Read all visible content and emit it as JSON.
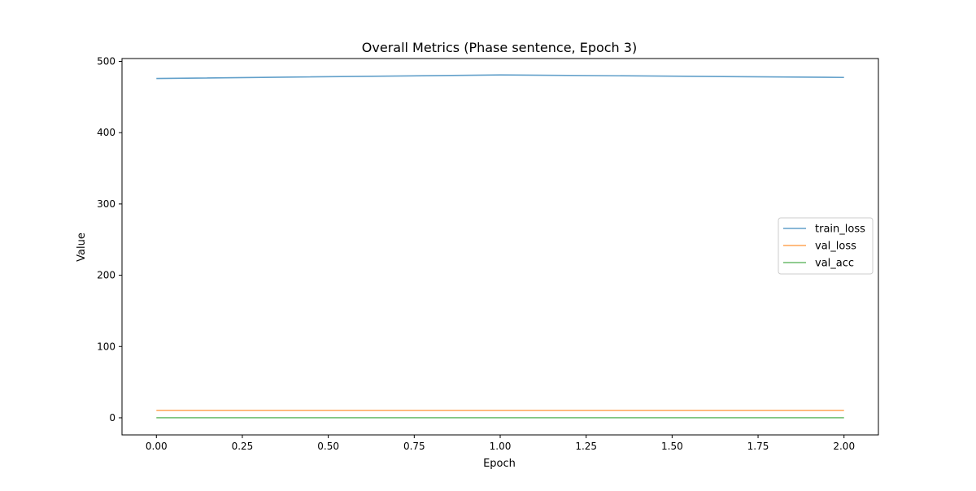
{
  "chart_data": {
    "type": "line",
    "title": "Overall Metrics (Phase sentence, Epoch 3)",
    "xlabel": "Epoch",
    "ylabel": "Value",
    "x": [
      0,
      1,
      2
    ],
    "xlim": [
      -0.1,
      2.1
    ],
    "ylim": [
      -24,
      504
    ],
    "xticks": [
      0.0,
      0.25,
      0.5,
      0.75,
      1.0,
      1.25,
      1.5,
      1.75,
      2.0
    ],
    "xtick_labels": [
      "0.00",
      "0.25",
      "0.50",
      "0.75",
      "1.00",
      "1.25",
      "1.50",
      "1.75",
      "2.00"
    ],
    "yticks": [
      0,
      100,
      200,
      300,
      400,
      500
    ],
    "ytick_labels": [
      "0",
      "100",
      "200",
      "300",
      "400",
      "500"
    ],
    "grid": false,
    "legend_position": "center-right",
    "series": [
      {
        "name": "train_loss",
        "values": [
          476,
          481,
          477.5
        ],
        "color": "#1f77b4"
      },
      {
        "name": "val_loss",
        "values": [
          10.5,
          10.5,
          10.5
        ],
        "color": "#ff7f0e"
      },
      {
        "name": "val_acc",
        "values": [
          0.1,
          0.1,
          0.1
        ],
        "color": "#2ca02c"
      }
    ]
  }
}
